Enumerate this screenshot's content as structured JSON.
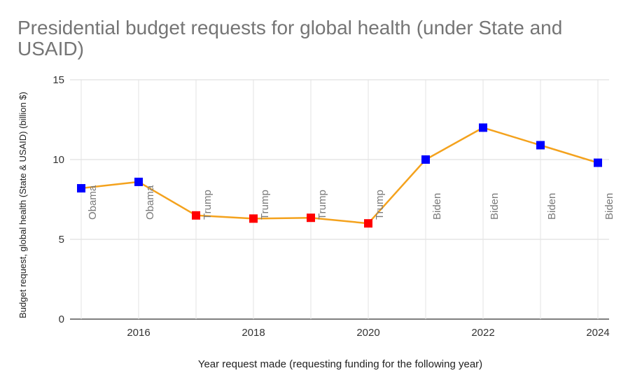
{
  "chart_data": {
    "type": "line",
    "title": "Presidential budget requests for global health (under State and USAID)",
    "xlabel": "Year request made (requesting funding for the following year)",
    "ylabel": "Budget request, global health (State & USAID) (billion $)",
    "xlim": [
      2015,
      2024
    ],
    "ylim": [
      0,
      15
    ],
    "x_ticks": [
      2016,
      2018,
      2020,
      2022,
      2024
    ],
    "y_ticks": [
      0,
      5,
      10,
      15
    ],
    "grid": true,
    "line_color": "#f4a21d",
    "series": [
      {
        "name": "Budget request",
        "points": [
          {
            "x": 2015,
            "y": 8.2,
            "label": "Obama",
            "color": "#0000ff"
          },
          {
            "x": 2016,
            "y": 8.6,
            "label": "Obama",
            "color": "#0000ff"
          },
          {
            "x": 2017,
            "y": 6.5,
            "label": "Trump",
            "color": "#ff0000"
          },
          {
            "x": 2018,
            "y": 6.3,
            "label": "Trump",
            "color": "#ff0000"
          },
          {
            "x": 2019,
            "y": 6.35,
            "label": "Trump",
            "color": "#ff0000"
          },
          {
            "x": 2020,
            "y": 6.0,
            "label": "Trump",
            "color": "#ff0000"
          },
          {
            "x": 2021,
            "y": 10.0,
            "label": "Biden",
            "color": "#0000ff"
          },
          {
            "x": 2022,
            "y": 12.0,
            "label": "Biden",
            "color": "#0000ff"
          },
          {
            "x": 2023,
            "y": 10.9,
            "label": "Biden",
            "color": "#0000ff"
          },
          {
            "x": 2024,
            "y": 9.8,
            "label": "Biden",
            "color": "#0000ff"
          }
        ]
      }
    ]
  }
}
